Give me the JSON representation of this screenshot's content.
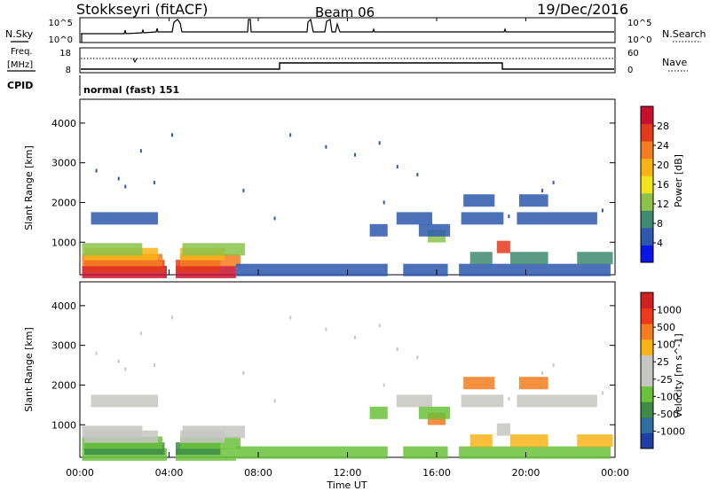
{
  "header": {
    "station": "Stokkseyri (fitACF)",
    "beam": "Beam 06",
    "date": "19/Dec/2016"
  },
  "top_panels": {
    "noise": {
      "left_label": "N.Sky",
      "right_label": "N.Search",
      "left_ticks": [
        "10^5",
        "10^0"
      ],
      "right_ticks": [
        "10^5",
        "10^0"
      ]
    },
    "freq": {
      "left_label_1": "Freq.",
      "left_label_2": "[MHz]",
      "right_label": "Nave",
      "left_ticks": [
        "18",
        "8"
      ],
      "right_ticks": [
        "60",
        "0"
      ]
    },
    "cpid": {
      "label": "CPID",
      "value": "normal (fast) 151"
    }
  },
  "chart_data": [
    {
      "type": "heatmap",
      "name": "power",
      "ylabel": "Slant Range [km]",
      "ylim": [
        180,
        4600
      ],
      "yticks": [
        "1000",
        "2000",
        "3000",
        "4000"
      ],
      "colorbar_label": "Power [dB]",
      "colorbar_ticks": [
        "4",
        "8",
        "12",
        "16",
        "20",
        "24",
        "28"
      ],
      "colorbar_colors": [
        "#0a16e8",
        "#2d58ad",
        "#3f8a71",
        "#8bc34a",
        "#f0e21b",
        "#f9b317",
        "#f57c1f",
        "#e43a1c",
        "#c8102e"
      ],
      "scan_edges_hr": [
        0,
        4.15,
        8.0,
        8.9,
        12.0,
        16.0,
        18.8,
        20.0,
        24.0
      ],
      "rows": [
        {
          "r": 250,
          "c": "#c8102e",
          "segs": [
            [
              0.1,
              3.9
            ],
            [
              4.3,
              7.0
            ]
          ]
        },
        {
          "r": 400,
          "c": "#e43a1c",
          "segs": [
            [
              0.2,
              3.8
            ],
            [
              4.3,
              6.3
            ]
          ]
        },
        {
          "r": 550,
          "c": "#f57c1f",
          "segs": [
            [
              0.1,
              3.7
            ],
            [
              4.5,
              7.2
            ]
          ]
        },
        {
          "r": 700,
          "c": "#f9b317",
          "segs": [
            [
              0.2,
              3.5
            ],
            [
              4.5,
              6.5
            ]
          ]
        },
        {
          "r": 820,
          "c": "#8bc34a",
          "segs": [
            [
              0.1,
              2.8
            ],
            [
              4.6,
              7.4
            ]
          ]
        },
        {
          "r": 300,
          "c": "#2d58ad",
          "segs": [
            [
              7.0,
              13.8
            ],
            [
              14.5,
              16.5
            ],
            [
              17.0,
              23.8
            ]
          ]
        },
        {
          "r": 1600,
          "c": "#2d58ad",
          "segs": [
            [
              0.5,
              3.5
            ],
            [
              14.2,
              15.8
            ],
            [
              17.1,
              19.0
            ],
            [
              19.6,
              23.2
            ]
          ]
        },
        {
          "r": 2050,
          "c": "#2d58ad",
          "segs": [
            [
              17.2,
              18.6
            ],
            [
              19.7,
              21.0
            ]
          ]
        },
        {
          "r": 1150,
          "c": "#8bc34a",
          "segs": [
            [
              15.6,
              16.4
            ]
          ]
        },
        {
          "r": 600,
          "c": "#3f8a71",
          "segs": [
            [
              17.5,
              18.5
            ],
            [
              19.3,
              21.0
            ],
            [
              22.3,
              23.9
            ]
          ]
        },
        {
          "r": 880,
          "c": "#e43a1c",
          "segs": [
            [
              18.7,
              19.3
            ]
          ]
        },
        {
          "r": 1300,
          "c": "#2d58ad",
          "segs": [
            [
              13.0,
              13.8
            ],
            [
              15.2,
              16.6
            ]
          ]
        }
      ],
      "dots": [
        [
          0.7,
          2800
        ],
        [
          1.7,
          2600
        ],
        [
          2.0,
          2400
        ],
        [
          2.7,
          3300
        ],
        [
          3.3,
          2500
        ],
        [
          4.1,
          3700
        ],
        [
          7.3,
          2300
        ],
        [
          9.4,
          3700
        ],
        [
          11.0,
          3400
        ],
        [
          12.3,
          3200
        ],
        [
          13.4,
          3500
        ],
        [
          13.6,
          2000
        ],
        [
          14.2,
          2900
        ],
        [
          15.1,
          2700
        ],
        [
          19.2,
          1650
        ],
        [
          20.7,
          2300
        ],
        [
          21.2,
          2500
        ],
        [
          23.4,
          1800
        ],
        [
          8.7,
          1600
        ]
      ]
    },
    {
      "type": "heatmap",
      "name": "velocity",
      "xlabel": "Time UT",
      "xticks": [
        "00:00",
        "04:00",
        "08:00",
        "12:00",
        "16:00",
        "20:00",
        "00:00"
      ],
      "ylabel": "Slant Range [km]",
      "ylim": [
        180,
        4600
      ],
      "yticks": [
        "1000",
        "2000",
        "3000",
        "4000"
      ],
      "colorbar_label": "Velocity [m s^-1]",
      "colorbar_ticks": [
        "1000",
        "500",
        "100",
        "25",
        "-25",
        "-100",
        "-500",
        "-1000"
      ],
      "colorbar_colors": [
        "#1f3fa8",
        "#2e6f9e",
        "#3d8b44",
        "#6ac13a",
        "#c6c6c2",
        "#c6c6c2",
        "#f9b317",
        "#f57c1f",
        "#ee3a1a",
        "#d21f1f"
      ],
      "rows": [
        {
          "r": 250,
          "c": "#6ac13a",
          "segs": [
            [
              0.1,
              3.9
            ],
            [
              4.3,
              7.0
            ]
          ]
        },
        {
          "r": 400,
          "c": "#3d8b44",
          "segs": [
            [
              0.2,
              3.8
            ],
            [
              4.3,
              6.3
            ]
          ]
        },
        {
          "r": 550,
          "c": "#6ac13a",
          "segs": [
            [
              0.1,
              3.7
            ],
            [
              4.5,
              7.2
            ]
          ]
        },
        {
          "r": 700,
          "c": "#c6c6c2",
          "segs": [
            [
              0.2,
              3.5
            ],
            [
              4.5,
              6.5
            ]
          ]
        },
        {
          "r": 820,
          "c": "#c6c6c2",
          "segs": [
            [
              0.1,
              2.8
            ],
            [
              4.6,
              7.4
            ]
          ]
        },
        {
          "r": 300,
          "c": "#6ac13a",
          "segs": [
            [
              7.0,
              13.8
            ],
            [
              14.5,
              16.5
            ],
            [
              17.0,
              23.8
            ]
          ]
        },
        {
          "r": 1600,
          "c": "#c6c6c2",
          "segs": [
            [
              0.5,
              3.5
            ],
            [
              14.2,
              15.8
            ],
            [
              17.1,
              19.0
            ],
            [
              19.6,
              23.2
            ]
          ]
        },
        {
          "r": 2050,
          "c": "#f57c1f",
          "segs": [
            [
              17.2,
              18.6
            ],
            [
              19.7,
              21.0
            ]
          ]
        },
        {
          "r": 1150,
          "c": "#f57c1f",
          "segs": [
            [
              15.6,
              16.4
            ]
          ]
        },
        {
          "r": 600,
          "c": "#f9b317",
          "segs": [
            [
              17.5,
              18.5
            ],
            [
              19.3,
              21.0
            ],
            [
              22.3,
              23.9
            ]
          ]
        },
        {
          "r": 880,
          "c": "#c6c6c2",
          "segs": [
            [
              18.7,
              19.3
            ]
          ]
        },
        {
          "r": 1300,
          "c": "#6ac13a",
          "segs": [
            [
              13.0,
              13.8
            ],
            [
              15.2,
              16.6
            ]
          ]
        }
      ],
      "dots": [
        [
          0.7,
          2800
        ],
        [
          1.7,
          2600
        ],
        [
          2.0,
          2400
        ],
        [
          2.7,
          3300
        ],
        [
          3.3,
          2500
        ],
        [
          4.1,
          3700
        ],
        [
          7.3,
          2300
        ],
        [
          9.4,
          3700
        ],
        [
          11.0,
          3400
        ],
        [
          12.3,
          3200
        ],
        [
          13.4,
          3500
        ],
        [
          13.6,
          2000
        ],
        [
          14.2,
          2900
        ],
        [
          15.1,
          2700
        ],
        [
          19.2,
          1650
        ],
        [
          20.7,
          2300
        ],
        [
          21.2,
          2500
        ],
        [
          23.4,
          1800
        ],
        [
          8.7,
          1600
        ]
      ]
    }
  ]
}
